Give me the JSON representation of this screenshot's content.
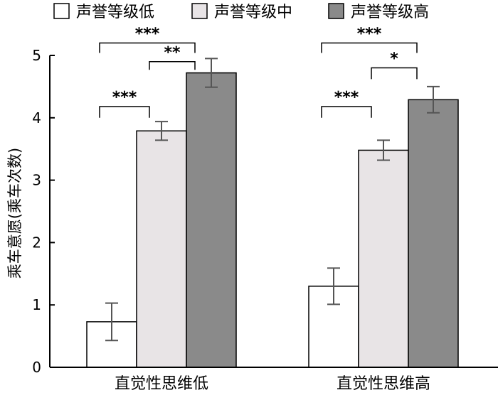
{
  "chart_data": {
    "type": "bar",
    "title": "",
    "xlabel": "",
    "ylabel": "乘车意愿(乘车次数)",
    "ylim": [
      0,
      5
    ],
    "yticks": [
      0,
      1,
      2,
      3,
      4,
      5
    ],
    "grid": false,
    "legend_position": "top",
    "categories": [
      "直觉性思维低",
      "直觉性思维高"
    ],
    "series": [
      {
        "name": "声誉等级低",
        "color": "#ffffff",
        "values": [
          0.73,
          1.3
        ],
        "errors": [
          0.3,
          0.29
        ]
      },
      {
        "name": "声誉等级中",
        "color": "#e8e4e6",
        "values": [
          3.79,
          3.48
        ],
        "errors": [
          0.15,
          0.16
        ]
      },
      {
        "name": "声誉等级高",
        "color": "#8a8a8a",
        "values": [
          4.72,
          4.29
        ],
        "errors": [
          0.23,
          0.21
        ]
      }
    ],
    "significance": [
      {
        "category": 0,
        "from": 0,
        "to": 1,
        "label": "***",
        "y": 4.18,
        "drop": 0.18
      },
      {
        "category": 0,
        "from": 1,
        "to": 2,
        "label": "**",
        "y": 4.9,
        "drop": 0.13
      },
      {
        "category": 0,
        "from": 0,
        "to": 2,
        "label": "***",
        "y": 5.2,
        "drop": 0.16
      },
      {
        "category": 1,
        "from": 0,
        "to": 1,
        "label": "***",
        "y": 4.18,
        "drop": 0.18
      },
      {
        "category": 1,
        "from": 1,
        "to": 2,
        "label": "*",
        "y": 4.8,
        "drop": 0.18
      },
      {
        "category": 1,
        "from": 0,
        "to": 2,
        "label": "***",
        "y": 5.2,
        "drop": 0.16
      }
    ]
  }
}
